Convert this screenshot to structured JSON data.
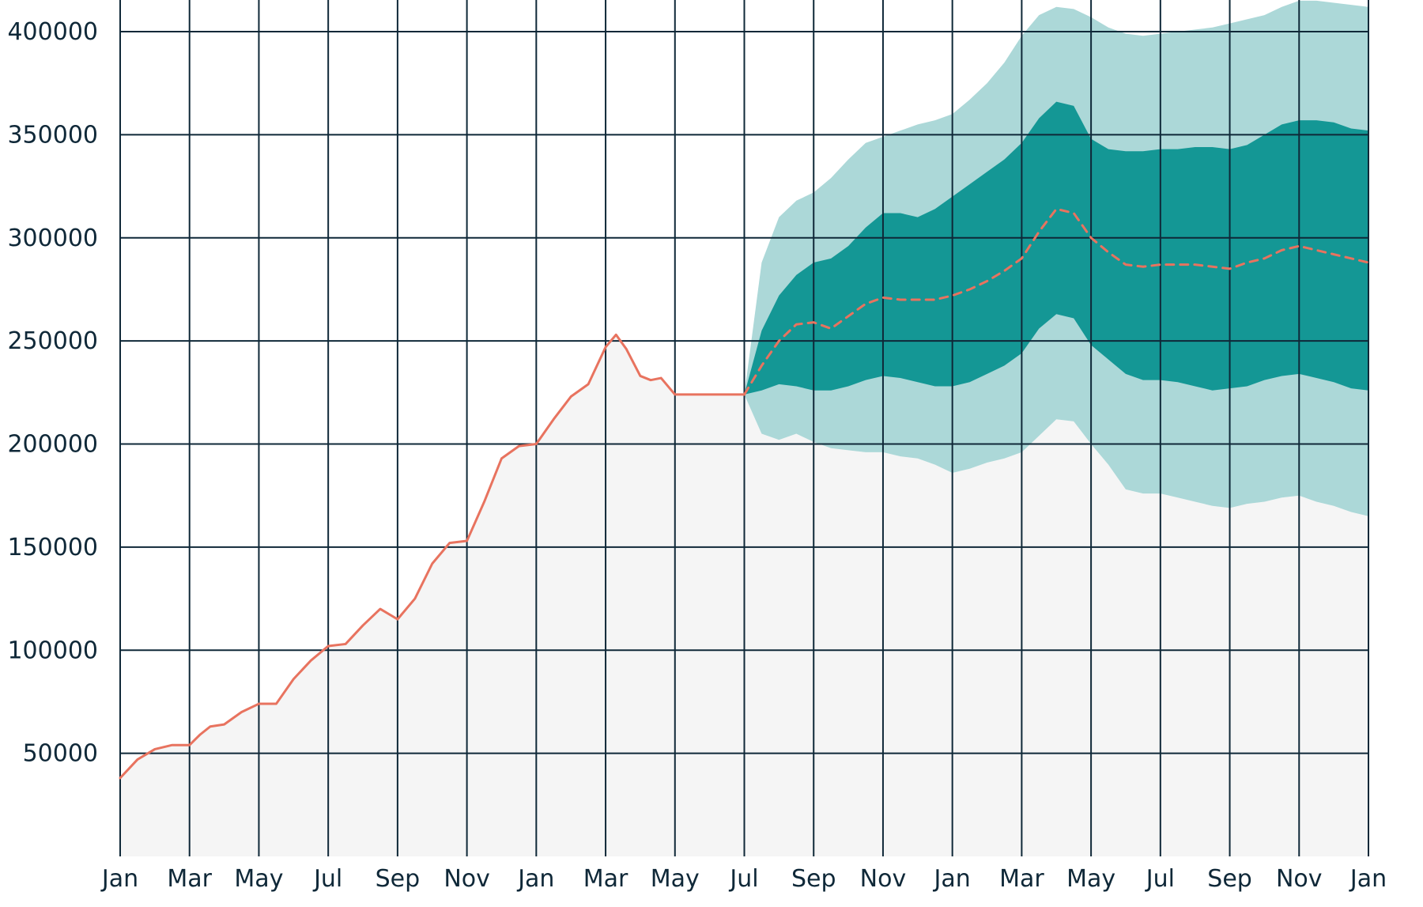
{
  "chart_data": {
    "type": "area",
    "title": "",
    "xlabel": "",
    "ylabel": "",
    "grid": true,
    "legend": "none",
    "xlim": [
      0,
      36
    ],
    "ylim": [
      0,
      400000
    ],
    "x_tick_labels": [
      "Jan",
      "Mar",
      "May",
      "Jul",
      "Sep",
      "Nov",
      "Jan",
      "Mar",
      "May",
      "Jul",
      "Sep",
      "Nov",
      "Jan",
      "Mar",
      "May",
      "Jul",
      "Sep",
      "Nov",
      "Jan"
    ],
    "x_tick_positions": [
      0,
      2,
      4,
      6,
      8,
      10,
      12,
      14,
      16,
      18,
      20,
      22,
      24,
      26,
      28,
      30,
      32,
      34,
      36
    ],
    "y_ticks": [
      50000,
      100000,
      150000,
      200000,
      250000,
      300000,
      350000,
      400000
    ],
    "colors": {
      "historical_line": "#e8735f",
      "historical_fill": "#f5f5f5",
      "forecast_line": "#e8735f",
      "inner_band": "#149795",
      "outer_band": "#acd8d8",
      "grid": "#0f2838",
      "text": "#0f2838"
    },
    "series": [
      {
        "kind": "historical",
        "x": [
          0,
          0.5,
          1,
          1.5,
          2,
          2.3,
          2.6,
          3,
          3.5,
          4,
          4.5,
          5,
          5.5,
          6,
          6.5,
          7,
          7.5,
          8,
          8.5,
          9,
          9.5,
          10,
          10.5,
          11,
          11.5,
          12,
          12.5,
          13,
          13.5,
          14,
          14.3,
          14.6,
          15,
          15.3,
          15.6,
          16,
          16.3,
          16.6,
          17,
          17.5,
          18
        ],
        "y": [
          38000,
          47000,
          52000,
          54000,
          54000,
          59000,
          63000,
          64000,
          70000,
          74000,
          74000,
          86000,
          95000,
          102000,
          103000,
          112000,
          120000,
          115000,
          125000,
          142000,
          152000,
          153000,
          172000,
          193000,
          199000,
          200000,
          212000,
          223000,
          229000,
          247000,
          253000,
          246000,
          233000,
          231000,
          232000,
          224000,
          224000,
          224000,
          224000,
          224000,
          224000
        ]
      },
      {
        "kind": "forecast-median",
        "x": [
          18,
          18.5,
          19,
          19.5,
          20,
          20.5,
          21,
          21.5,
          22,
          22.5,
          23,
          23.5,
          24,
          24.5,
          25,
          25.5,
          26,
          26.5,
          27,
          27.5,
          28,
          28.5,
          29,
          29.5,
          30,
          30.5,
          31,
          31.5,
          32,
          32.5,
          33,
          33.5,
          34,
          34.5,
          35,
          35.5,
          36
        ],
        "y": [
          224000,
          238000,
          250000,
          258000,
          259000,
          256000,
          262000,
          268000,
          271000,
          270000,
          270000,
          270000,
          272000,
          275000,
          279000,
          284000,
          290000,
          303000,
          314000,
          312000,
          300000,
          293000,
          287000,
          286000,
          287000,
          287000,
          287000,
          286000,
          285000,
          288000,
          290000,
          294000,
          296000,
          294000,
          292000,
          290000,
          288000
        ]
      },
      {
        "kind": "inner-band",
        "x": [
          18,
          18.5,
          19,
          19.5,
          20,
          20.5,
          21,
          21.5,
          22,
          22.5,
          23,
          23.5,
          24,
          24.5,
          25,
          25.5,
          26,
          26.5,
          27,
          27.5,
          28,
          28.5,
          29,
          29.5,
          30,
          30.5,
          31,
          31.5,
          32,
          32.5,
          33,
          33.5,
          34,
          34.5,
          35,
          35.5,
          36
        ],
        "upper": [
          224000,
          255000,
          272000,
          282000,
          288000,
          290000,
          296000,
          305000,
          312000,
          312000,
          310000,
          314000,
          320000,
          326000,
          332000,
          338000,
          346000,
          358000,
          366000,
          364000,
          348000,
          343000,
          342000,
          342000,
          343000,
          343000,
          344000,
          344000,
          343000,
          345000,
          350000,
          355000,
          357000,
          357000,
          356000,
          353000,
          352000
        ],
        "lower": [
          224000,
          226000,
          229000,
          228000,
          226000,
          226000,
          228000,
          231000,
          233000,
          232000,
          230000,
          228000,
          228000,
          230000,
          234000,
          238000,
          244000,
          256000,
          263000,
          261000,
          248000,
          241000,
          234000,
          231000,
          231000,
          230000,
          228000,
          226000,
          227000,
          228000,
          231000,
          233000,
          234000,
          232000,
          230000,
          227000,
          226000
        ]
      },
      {
        "kind": "outer-band",
        "x": [
          18,
          18.5,
          19,
          19.5,
          20,
          20.5,
          21,
          21.5,
          22,
          22.5,
          23,
          23.5,
          24,
          24.5,
          25,
          25.5,
          26,
          26.5,
          27,
          27.5,
          28,
          28.5,
          29,
          29.5,
          30,
          30.5,
          31,
          31.5,
          32,
          32.5,
          33,
          33.5,
          34,
          34.5,
          35,
          35.5,
          36
        ],
        "upper": [
          224000,
          288000,
          310000,
          318000,
          322000,
          329000,
          338000,
          346000,
          349000,
          352000,
          355000,
          357000,
          360000,
          367000,
          375000,
          385000,
          398000,
          408000,
          412000,
          411000,
          407000,
          402000,
          399000,
          398000,
          399000,
          400000,
          401000,
          402000,
          404000,
          406000,
          408000,
          412000,
          415000,
          415000,
          414000,
          413000,
          412000
        ],
        "lower": [
          224000,
          205000,
          202000,
          205000,
          201000,
          198000,
          197000,
          196000,
          196000,
          194000,
          193000,
          190000,
          186000,
          188000,
          191000,
          193000,
          196000,
          204000,
          212000,
          211000,
          200000,
          190000,
          178000,
          176000,
          176000,
          174000,
          172000,
          170000,
          169000,
          171000,
          172000,
          174000,
          175000,
          172000,
          170000,
          167000,
          165000
        ]
      }
    ]
  }
}
